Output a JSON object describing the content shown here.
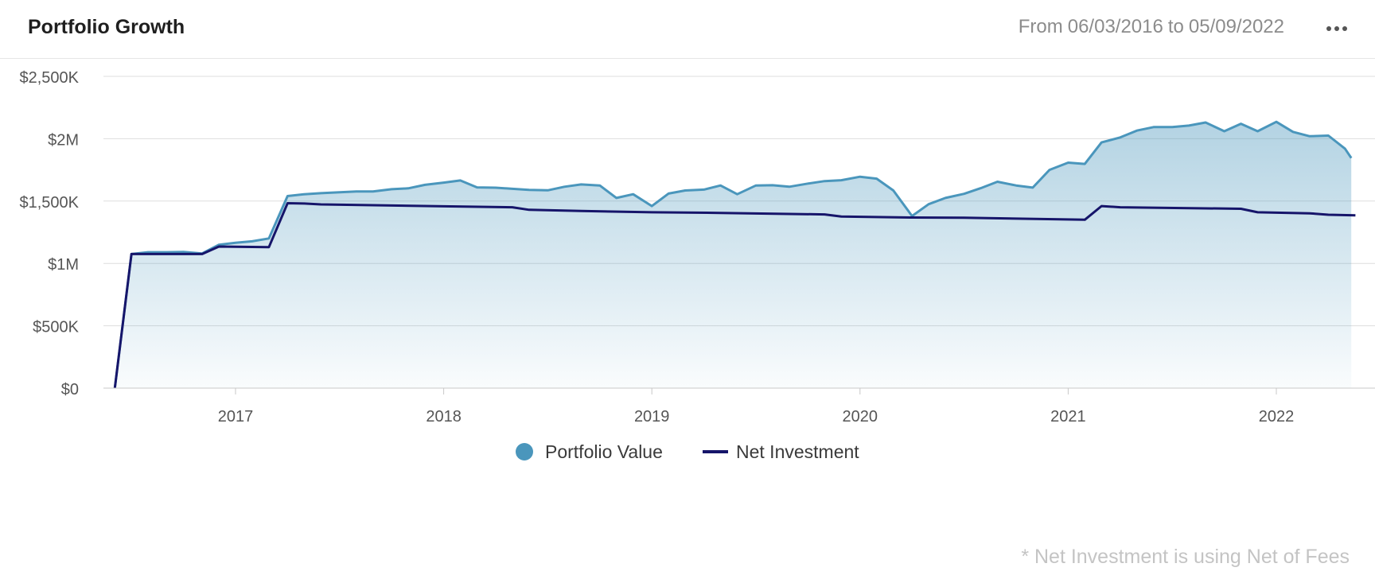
{
  "header": {
    "title": "Portfolio Growth",
    "date_from_label": "From",
    "date_from": "06/03/2016",
    "date_to_label": "to",
    "date_to": "05/09/2022",
    "more_icon": "more-horizontal-icon"
  },
  "footnote": "* Net Investment is using Net of Fees",
  "colors": {
    "portfolio_line": "#4a96bc",
    "net_line": "#16156a",
    "grid": "#dddddd",
    "axis_text": "#555555"
  },
  "chart_data": {
    "type": "area",
    "title": "Portfolio Growth",
    "xlabel": "",
    "ylabel": "",
    "xlim": [
      2016.42,
      2022.38
    ],
    "ylim": [
      0,
      2500000
    ],
    "grid": true,
    "legend_position": "bottom-center",
    "y_ticks": [
      {
        "value": 0,
        "label": "$0"
      },
      {
        "value": 500000,
        "label": "$500K"
      },
      {
        "value": 1000000,
        "label": "$1M"
      },
      {
        "value": 1500000,
        "label": "$1,500K"
      },
      {
        "value": 2000000,
        "label": "$2M"
      },
      {
        "value": 2500000,
        "label": "$2,500K"
      }
    ],
    "x_ticks": [
      {
        "value": 2017,
        "label": "2017"
      },
      {
        "value": 2018,
        "label": "2018"
      },
      {
        "value": 2019,
        "label": "2019"
      },
      {
        "value": 2020,
        "label": "2020"
      },
      {
        "value": 2021,
        "label": "2021"
      },
      {
        "value": 2022,
        "label": "2022"
      }
    ],
    "series": [
      {
        "name": "Portfolio Value",
        "style": "area",
        "points": [
          [
            2016.42,
            0
          ],
          [
            2016.5,
            1075000
          ],
          [
            2016.58,
            1090000
          ],
          [
            2016.67,
            1090000
          ],
          [
            2016.75,
            1092000
          ],
          [
            2016.84,
            1080000
          ],
          [
            2016.92,
            1150000
          ],
          [
            2017.0,
            1165000
          ],
          [
            2017.08,
            1177000
          ],
          [
            2017.16,
            1200000
          ],
          [
            2017.25,
            1540000
          ],
          [
            2017.33,
            1555000
          ],
          [
            2017.41,
            1563000
          ],
          [
            2017.5,
            1570000
          ],
          [
            2017.58,
            1577000
          ],
          [
            2017.66,
            1577000
          ],
          [
            2017.75,
            1595000
          ],
          [
            2017.83,
            1602000
          ],
          [
            2017.91,
            1630000
          ],
          [
            2018.0,
            1648000
          ],
          [
            2018.08,
            1665000
          ],
          [
            2018.16,
            1610000
          ],
          [
            2018.25,
            1607000
          ],
          [
            2018.33,
            1598000
          ],
          [
            2018.41,
            1590000
          ],
          [
            2018.5,
            1586000
          ],
          [
            2018.58,
            1615000
          ],
          [
            2018.66,
            1633000
          ],
          [
            2018.75,
            1625000
          ],
          [
            2018.83,
            1525000
          ],
          [
            2018.91,
            1555000
          ],
          [
            2019.0,
            1460000
          ],
          [
            2019.08,
            1560000
          ],
          [
            2019.16,
            1585000
          ],
          [
            2019.25,
            1592000
          ],
          [
            2019.33,
            1625000
          ],
          [
            2019.41,
            1555000
          ],
          [
            2019.5,
            1625000
          ],
          [
            2019.58,
            1627000
          ],
          [
            2019.66,
            1615000
          ],
          [
            2019.75,
            1640000
          ],
          [
            2019.83,
            1660000
          ],
          [
            2019.91,
            1667000
          ],
          [
            2020.0,
            1695000
          ],
          [
            2020.08,
            1680000
          ],
          [
            2020.16,
            1585000
          ],
          [
            2020.25,
            1380000
          ],
          [
            2020.33,
            1475000
          ],
          [
            2020.41,
            1525000
          ],
          [
            2020.5,
            1558000
          ],
          [
            2020.58,
            1603000
          ],
          [
            2020.66,
            1655000
          ],
          [
            2020.75,
            1625000
          ],
          [
            2020.83,
            1608000
          ],
          [
            2020.91,
            1750000
          ],
          [
            2021.0,
            1808000
          ],
          [
            2021.08,
            1798000
          ],
          [
            2021.16,
            1970000
          ],
          [
            2021.25,
            2010000
          ],
          [
            2021.33,
            2065000
          ],
          [
            2021.41,
            2093000
          ],
          [
            2021.5,
            2093000
          ],
          [
            2021.58,
            2105000
          ],
          [
            2021.66,
            2130000
          ],
          [
            2021.75,
            2060000
          ],
          [
            2021.83,
            2120000
          ],
          [
            2021.91,
            2060000
          ],
          [
            2022.0,
            2135000
          ],
          [
            2022.08,
            2055000
          ],
          [
            2022.16,
            2020000
          ],
          [
            2022.25,
            2025000
          ],
          [
            2022.33,
            1920000
          ],
          [
            2022.36,
            1845000
          ]
        ]
      },
      {
        "name": "Net Investment",
        "style": "line",
        "points": [
          [
            2016.42,
            0
          ],
          [
            2016.5,
            1075000
          ],
          [
            2016.84,
            1075000
          ],
          [
            2016.92,
            1135000
          ],
          [
            2017.16,
            1130000
          ],
          [
            2017.25,
            1483000
          ],
          [
            2017.33,
            1480000
          ],
          [
            2017.41,
            1473000
          ],
          [
            2018.0,
            1458000
          ],
          [
            2018.33,
            1450000
          ],
          [
            2018.41,
            1430000
          ],
          [
            2018.66,
            1420000
          ],
          [
            2019.0,
            1410000
          ],
          [
            2019.33,
            1405000
          ],
          [
            2019.83,
            1393000
          ],
          [
            2019.91,
            1376000
          ],
          [
            2020.25,
            1368000
          ],
          [
            2020.5,
            1366000
          ],
          [
            2021.08,
            1350000
          ],
          [
            2021.16,
            1460000
          ],
          [
            2021.25,
            1450000
          ],
          [
            2021.83,
            1438000
          ],
          [
            2021.91,
            1410000
          ],
          [
            2022.16,
            1402000
          ],
          [
            2022.25,
            1390000
          ],
          [
            2022.38,
            1386000
          ]
        ]
      }
    ]
  }
}
